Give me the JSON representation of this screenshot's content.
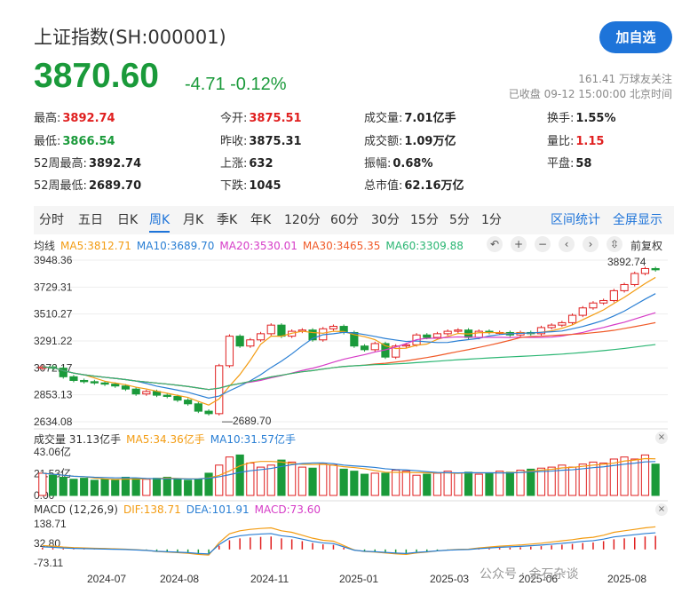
{
  "header": {
    "title": "上证指数(SH:000001)",
    "follow_button": "加自选",
    "price": "3870.60",
    "change": "-4.71 -0.12%",
    "followers": "161.41 万球友关注",
    "status": "已收盘 09-12 15:00:00 北京时间"
  },
  "stats": [
    {
      "label": "最高:",
      "value": "3892.74",
      "color": "red"
    },
    {
      "label": "今开:",
      "value": "3875.51",
      "color": "red"
    },
    {
      "label": "成交量:",
      "value": "7.01亿手",
      "color": ""
    },
    {
      "label": "换手:",
      "value": "1.55%",
      "color": ""
    },
    {
      "label": "最低:",
      "value": "3866.54",
      "color": "green"
    },
    {
      "label": "昨收:",
      "value": "3875.31",
      "color": ""
    },
    {
      "label": "成交额:",
      "value": "1.09万亿",
      "color": ""
    },
    {
      "label": "量比:",
      "value": "1.15",
      "color": "red"
    },
    {
      "label": "52周最高:",
      "value": "3892.74",
      "color": ""
    },
    {
      "label": "上涨:",
      "value": "632",
      "color": ""
    },
    {
      "label": "振幅:",
      "value": "0.68%",
      "color": ""
    },
    {
      "label": "平盘:",
      "value": "58",
      "color": ""
    },
    {
      "label": "52周最低:",
      "value": "2689.70",
      "color": ""
    },
    {
      "label": "下跌:",
      "value": "1045",
      "color": ""
    },
    {
      "label": "总市值:",
      "value": "62.16万亿",
      "color": ""
    }
  ],
  "tabs": [
    "分时",
    "五日",
    "日K",
    "周K",
    "月K",
    "季K",
    "年K",
    "120分",
    "60分",
    "30分",
    "15分",
    "5分",
    "1分"
  ],
  "active_tab": "周K",
  "tab_right": [
    "区间统计",
    "全屏显示"
  ],
  "ma_legend": {
    "label": "均线",
    "items": [
      {
        "text": "MA5:3812.71",
        "color": "#f39c12"
      },
      {
        "text": "MA10:3689.70",
        "color": "#2a7fd4"
      },
      {
        "text": "MA20:3530.01",
        "color": "#d63cc7"
      },
      {
        "text": "MA30:3465.35",
        "color": "#f05a28"
      },
      {
        "text": "MA60:3309.88",
        "color": "#2bb673"
      }
    ]
  },
  "controls": [
    "↶",
    "+",
    "−",
    "‹",
    "›",
    "⇳"
  ],
  "fuquan": "前复权",
  "volume_legend": {
    "label": "成交量 31.13亿手",
    "items": [
      {
        "text": "MA5:34.36亿手",
        "color": "#f39c12"
      },
      {
        "text": "MA10:31.57亿手",
        "color": "#2a7fd4"
      }
    ]
  },
  "macd_legend": {
    "label": "MACD (12,26,9)",
    "items": [
      {
        "text": "DIF:138.71",
        "color": "#f39c12"
      },
      {
        "text": "DEA:101.91",
        "color": "#2a7fd4"
      },
      {
        "text": "MACD:73.60",
        "color": "#d63cc7"
      }
    ]
  },
  "close_icon": "×",
  "watermark": "公众号 · 金石杂谈",
  "chart_data": {
    "type": "candlestick",
    "y_ticks": [
      "3948.36",
      "3729.31",
      "3510.27",
      "3291.22",
      "3072.17",
      "2853.13",
      "2634.08"
    ],
    "ylim": [
      2634.08,
      3948.36
    ],
    "x_ticks": [
      "2024-07",
      "2024-08",
      "2024-11",
      "2025-01",
      "2025-03",
      "2025-06",
      "2025-08"
    ],
    "high_label": "3892.74",
    "low_label": "2689.70",
    "weekly_closes": [
      3080,
      3070,
      3000,
      2970,
      2960,
      2950,
      2940,
      2925,
      2900,
      2860,
      2880,
      2850,
      2840,
      2810,
      2780,
      2720,
      2700,
      3090,
      3330,
      3250,
      3300,
      3350,
      3420,
      3330,
      3370,
      3380,
      3300,
      3390,
      3410,
      3360,
      3250,
      3220,
      3270,
      3160,
      3250,
      3260,
      3340,
      3320,
      3350,
      3370,
      3380,
      3320,
      3370,
      3360,
      3360,
      3340,
      3360,
      3350,
      3400,
      3420,
      3440,
      3500,
      3560,
      3600,
      3620,
      3700,
      3750,
      3840,
      3880,
      3870
    ],
    "vol_ticks": [
      "43.06亿",
      "21.53亿",
      "0.00"
    ],
    "volumes": [
      22,
      20,
      18,
      16,
      17,
      15,
      16,
      15,
      18,
      17,
      16,
      17,
      18,
      16,
      15,
      16,
      22,
      30,
      38,
      40,
      32,
      28,
      30,
      35,
      33,
      28,
      27,
      31,
      30,
      26,
      24,
      21,
      22,
      22,
      25,
      24,
      20,
      21,
      22,
      24,
      22,
      23,
      21,
      22,
      24,
      23,
      25,
      26,
      27,
      28,
      30,
      28,
      31,
      33,
      32,
      36,
      38,
      36,
      40,
      31
    ],
    "macd_ticks": [
      "138.71",
      "32.80",
      "-73.11"
    ],
    "macd_values": [
      10,
      8,
      5,
      3,
      2,
      1,
      0,
      -1,
      -2,
      -4,
      -6,
      -10,
      -12,
      -14,
      -16,
      -20,
      -22,
      20,
      50,
      60,
      65,
      68,
      70,
      60,
      55,
      45,
      35,
      28,
      25,
      10,
      -5,
      -10,
      -12,
      -15,
      -18,
      -20,
      -15,
      -12,
      -8,
      -5,
      -3,
      -2,
      2,
      5,
      8,
      10,
      12,
      15,
      18,
      22,
      26,
      30,
      35,
      38,
      45,
      55,
      60,
      65,
      70,
      73.6
    ]
  }
}
